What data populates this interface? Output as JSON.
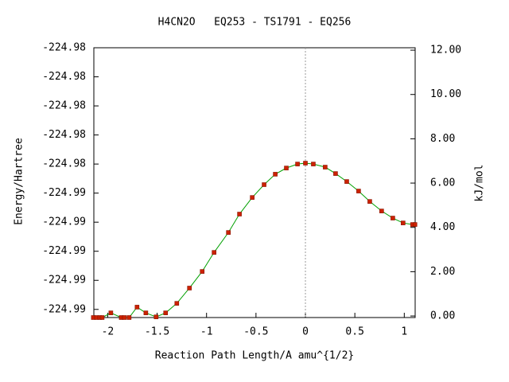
{
  "chart_data": {
    "type": "line",
    "title": "H4CN2O   EQ253 - TS1791 - EQ256",
    "x_label": "Reaction Path Length/A amu^{1/2}",
    "y_label": "Energy/Hartree",
    "y2_label": "kJ/mol",
    "x": [
      -2.145,
      -2.112,
      -2.08,
      -2.056,
      -1.968,
      -1.863,
      -1.831,
      -1.783,
      -1.703,
      -1.614,
      -1.51,
      -1.414,
      -1.301,
      -1.173,
      -1.044,
      -0.924,
      -0.779,
      -0.667,
      -0.538,
      -0.418,
      -0.305,
      -0.193,
      -0.08,
      0.0,
      0.08,
      0.2,
      0.305,
      0.418,
      0.538,
      0.651,
      0.771,
      0.884,
      0.988,
      1.084,
      1.108
    ],
    "values": [
      -0.07,
      -0.07,
      -0.07,
      -0.07,
      0.14,
      -0.07,
      -0.07,
      -0.07,
      0.4,
      0.14,
      -0.04,
      0.14,
      0.57,
      1.26,
      2.01,
      2.87,
      3.77,
      4.6,
      5.35,
      5.93,
      6.4,
      6.68,
      6.86,
      6.9,
      6.86,
      6.72,
      6.43,
      6.07,
      5.64,
      5.17,
      4.74,
      4.42,
      4.2,
      4.13,
      4.13
    ],
    "axis": "y2",
    "color": "#00a000",
    "marker_color": "#cc2200",
    "reference_line_x": 0,
    "xlim": [
      -2.14,
      1.11
    ],
    "xticks": [
      -2,
      -1.5,
      -1,
      -0.5,
      0,
      0.5,
      1
    ],
    "ylim": [
      -224.98754,
      -224.9829
    ],
    "yticks": [
      {
        "value": -224.9874,
        "label": "-224.99"
      },
      {
        "value": -224.9869,
        "label": "-224.99"
      },
      {
        "value": -224.9864,
        "label": "-224.99"
      },
      {
        "value": -224.9859,
        "label": "-224.99"
      },
      {
        "value": -224.9854,
        "label": "-224.99"
      },
      {
        "value": -224.9849,
        "label": "-224.98"
      },
      {
        "value": -224.9844,
        "label": "-224.98"
      },
      {
        "value": -224.9839,
        "label": "-224.98"
      },
      {
        "value": -224.9834,
        "label": "-224.98"
      },
      {
        "value": -224.9829,
        "label": "-224.98"
      }
    ],
    "y2lim": [
      -0.07,
      12.11
    ],
    "y2ticks": [
      {
        "value": 0,
        "label": "0.00"
      },
      {
        "value": 2,
        "label": "2.00"
      },
      {
        "value": 4,
        "label": "4.00"
      },
      {
        "value": 6,
        "label": "6.00"
      },
      {
        "value": 8,
        "label": "8.00"
      },
      {
        "value": 10,
        "label": "10.00"
      },
      {
        "value": 12,
        "label": "12.00"
      }
    ]
  }
}
